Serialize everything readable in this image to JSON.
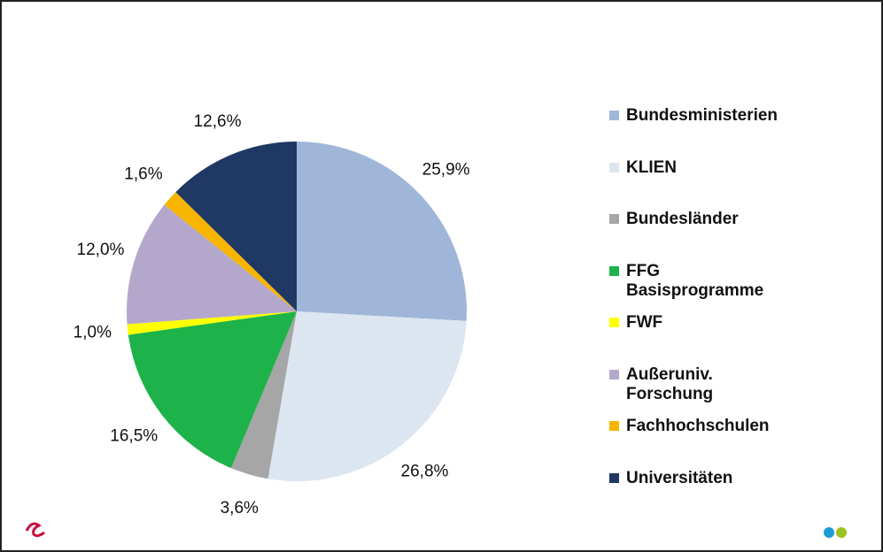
{
  "chart_data": {
    "type": "pie",
    "categories": [
      "Bundesministerien",
      "KLIEN",
      "Bundesländer",
      "FFG Basisprogramme",
      "FWF",
      "Außeruniv. Forschung",
      "Fachhochschulen",
      "Universitäten"
    ],
    "values": [
      25.9,
      26.8,
      3.6,
      16.5,
      1.0,
      12.0,
      1.6,
      12.6
    ],
    "value_labels": [
      "25,9%",
      "26,8%",
      "3,6%",
      "16,5%",
      "1,0%",
      "12,0%",
      "1,6%",
      "12,6%"
    ],
    "colors": [
      "#9fb6d9",
      "#dce6f0",
      "#a6a6a6",
      "#1db34a",
      "#ffff00",
      "#b4a7cc",
      "#f7b500",
      "#1f3864"
    ],
    "legend": "right"
  }
}
